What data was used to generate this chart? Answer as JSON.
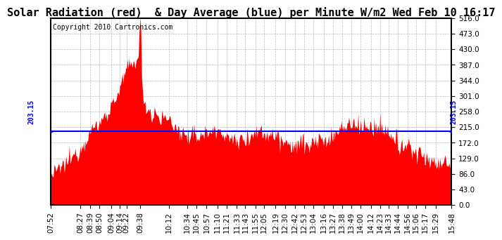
{
  "title": "Solar Radiation (red)  & Day Average (blue) per Minute W/m2 Wed Feb 10 16:17",
  "copyright_text": "Copyright 2010 Cartronics.com",
  "avg_value": 203.15,
  "y_ticks": [
    0.0,
    43.0,
    86.0,
    129.0,
    172.0,
    215.0,
    258.0,
    301.0,
    344.0,
    387.0,
    430.0,
    473.0,
    516.0
  ],
  "ylim": [
    0,
    516
  ],
  "x_tick_labels": [
    "07:52",
    "08:27",
    "08:39",
    "08:50",
    "09:04",
    "09:14",
    "09:22",
    "09:38",
    "10:12",
    "10:34",
    "10:45",
    "10:57",
    "11:10",
    "11:21",
    "11:33",
    "11:43",
    "11:55",
    "12:05",
    "12:19",
    "12:30",
    "12:42",
    "12:53",
    "13:04",
    "13:16",
    "13:27",
    "13:38",
    "13:49",
    "14:00",
    "14:12",
    "14:23",
    "14:33",
    "14:44",
    "14:56",
    "15:06",
    "15:17",
    "15:29",
    "15:48"
  ],
  "fill_color": "#FF0000",
  "line_color": "#0000FF",
  "grid_color": "#AAAAAA",
  "background_color": "#FFFFFF",
  "title_fontsize": 11,
  "axis_fontsize": 7.5,
  "copyright_fontsize": 7
}
